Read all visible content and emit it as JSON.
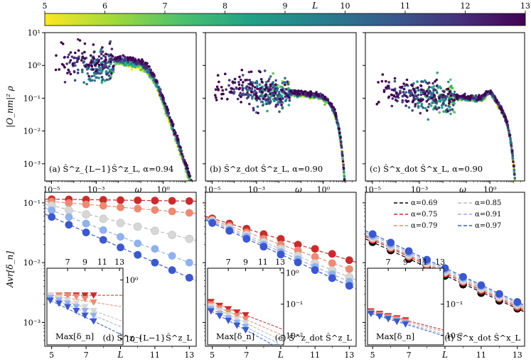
{
  "colorbar": {
    "label": "L",
    "ticks": [
      "5",
      "6",
      "7",
      "8",
      "9",
      "10",
      "11",
      "12",
      "13"
    ],
    "stops": [
      "#fde725",
      "#a0da39",
      "#4ac16d",
      "#1fa187",
      "#277f8e",
      "#365c8d",
      "#46327e",
      "#440154"
    ]
  },
  "chart_data": [
    {
      "id": "a",
      "type": "scatter",
      "label": "(a) Ŝ^z_{L−1}Ŝ^z_L, α=0.94",
      "xlabel": "ω",
      "ylabel": "|O_nm|² ρ",
      "xscale": "log",
      "yscale": "log",
      "xlim": [
        1e-05,
        30
      ],
      "ylim": [
        0.0003,
        10
      ],
      "xticks": [
        "10⁻⁵",
        "10⁻³",
        "10⁰"
      ],
      "yticks": [
        "10¹",
        "10⁰",
        "10⁻¹",
        "10⁻²",
        "10⁻³"
      ],
      "series_note": "one series per system size L = 5..13, colored by colorbar",
      "plateau_low": 1.5,
      "knee_omega": 0.3,
      "tail_slope": -2.2
    },
    {
      "id": "b",
      "type": "scatter",
      "label": "(b) Ŝ^z_dot Ŝ^z_L, α=0.90",
      "xlabel": "ω",
      "xscale": "log",
      "yscale": "log",
      "xlim": [
        1e-05,
        30
      ],
      "ylim": [
        0.0003,
        10
      ],
      "xticks": [
        "10⁻⁵",
        "10⁻³",
        "10⁰"
      ],
      "plateau_low": 0.12,
      "knee_omega": 3,
      "tail_slope": -4
    },
    {
      "id": "c",
      "type": "scatter",
      "label": "(c) Ŝ^x_dot Ŝ^x_L, α=0.90",
      "xlabel": "ω",
      "xscale": "log",
      "yscale": "log",
      "xlim": [
        1e-05,
        30
      ],
      "ylim": [
        0.0003,
        10
      ],
      "xticks": [
        "10⁻⁵",
        "10⁻³",
        "10⁰"
      ],
      "plateau_low": 0.09,
      "peak_omega": 1,
      "peak_value": 0.15,
      "knee_omega": 4,
      "tail_slope": -4
    },
    {
      "id": "d",
      "type": "line",
      "label": "(d) Ŝ^z_{L−1}Ŝ^z_L",
      "xlabel": "L",
      "ylabel": "Avr[δ_n]",
      "yscale": "log",
      "xlim": [
        4.6,
        13.4
      ],
      "ylim": [
        0.0004,
        0.15
      ],
      "xticks": [
        "5",
        "7",
        "L",
        "11",
        "13"
      ],
      "yticks": [
        "10⁻¹",
        "10⁻²",
        "10⁻³"
      ],
      "x": [
        5,
        6,
        7,
        8,
        9,
        10,
        11,
        12,
        13
      ],
      "series": [
        {
          "alpha": 0.75,
          "color": "#cc2b2b",
          "values": [
            0.115,
            0.114,
            0.113,
            0.112,
            0.111,
            0.11,
            0.109,
            0.108,
            0.107
          ]
        },
        {
          "alpha": 0.79,
          "color": "#ee8a72",
          "values": [
            0.105,
            0.099,
            0.094,
            0.089,
            0.084,
            0.08,
            0.076,
            0.072,
            0.068
          ]
        },
        {
          "alpha": 0.85,
          "color": "#d7d7d7",
          "values": [
            0.09,
            0.075,
            0.064,
            0.054,
            0.046,
            0.04,
            0.034,
            0.029,
            0.025
          ]
        },
        {
          "alpha": 0.91,
          "color": "#8fb1f0",
          "values": [
            0.075,
            0.058,
            0.045,
            0.035,
            0.027,
            0.021,
            0.017,
            0.013,
            0.01
          ]
        },
        {
          "alpha": 0.97,
          "color": "#3b58cf",
          "values": [
            0.058,
            0.043,
            0.032,
            0.024,
            0.018,
            0.0135,
            0.01,
            0.0075,
            0.0056
          ]
        }
      ],
      "inset": {
        "ylabel": "Max[δ_n]",
        "xticks": [
          "7",
          "9",
          "11",
          "13"
        ],
        "yticks": [
          "10⁰",
          "10⁻¹"
        ],
        "x": [
          5,
          6,
          7,
          8,
          9,
          10
        ],
        "series": [
          {
            "color": "#cc2b2b",
            "values": [
              0.55,
              0.55,
              0.55,
              0.55,
              0.55,
              0.55
            ]
          },
          {
            "color": "#ee8a72",
            "values": [
              0.55,
              0.55,
              0.54,
              0.52,
              0.48,
              0.42
            ]
          },
          {
            "color": "#d7d7d7",
            "values": [
              0.55,
              0.5,
              0.45,
              0.4,
              0.35,
              0.3
            ]
          },
          {
            "color": "#8fb1f0",
            "values": [
              0.5,
              0.45,
              0.4,
              0.35,
              0.3,
              0.25
            ]
          },
          {
            "color": "#3b58cf",
            "values": [
              0.45,
              0.4,
              0.35,
              0.3,
              0.25,
              0.2
            ]
          }
        ]
      }
    },
    {
      "id": "e",
      "type": "line",
      "label": "(e) Ŝ^z_dot Ŝ^z_L",
      "xlabel": "L",
      "yscale": "log",
      "xlim": [
        4.6,
        13.4
      ],
      "ylim": [
        0.0004,
        0.15
      ],
      "xticks": [
        "5",
        "7",
        "L",
        "11",
        "13"
      ],
      "x": [
        5,
        6,
        7,
        8,
        9,
        10,
        11,
        12,
        13
      ],
      "series": [
        {
          "alpha": 0.75,
          "color": "#cc2b2b",
          "values": [
            0.055,
            0.045,
            0.037,
            0.03,
            0.025,
            0.02,
            0.017,
            0.014,
            0.011
          ]
        },
        {
          "alpha": 0.79,
          "color": "#ee8a72",
          "values": [
            0.052,
            0.041,
            0.032,
            0.025,
            0.02,
            0.016,
            0.0125,
            0.0098,
            0.0078
          ]
        },
        {
          "alpha": 0.85,
          "color": "#d7d7d7",
          "values": [
            0.05,
            0.038,
            0.029,
            0.022,
            0.017,
            0.013,
            0.0097,
            0.0074,
            0.0057
          ]
        },
        {
          "alpha": 0.91,
          "color": "#8fb1f0",
          "values": [
            0.048,
            0.036,
            0.027,
            0.02,
            0.015,
            0.0113,
            0.0085,
            0.0064,
            0.0048
          ]
        },
        {
          "alpha": 0.97,
          "color": "#3b58cf",
          "values": [
            0.046,
            0.034,
            0.025,
            0.0185,
            0.0137,
            0.0101,
            0.0075,
            0.0055,
            0.0041
          ]
        }
      ],
      "inset": {
        "ylabel": "Max[δ_n]",
        "xticks": [
          "7",
          "9",
          "11",
          "13"
        ],
        "yticks": [
          "10⁰",
          "10⁻¹",
          "10⁻²"
        ],
        "x": [
          5,
          6,
          7,
          8,
          9
        ],
        "series": [
          {
            "color": "#cc2b2b",
            "values": [
              0.12,
              0.09,
              0.07,
              0.055,
              0.045
            ]
          },
          {
            "color": "#ee8a72",
            "values": [
              0.1,
              0.075,
              0.055,
              0.042,
              0.033
            ]
          },
          {
            "color": "#d7d7d7",
            "values": [
              0.085,
              0.062,
              0.045,
              0.033,
              0.025
            ]
          },
          {
            "color": "#8fb1f0",
            "values": [
              0.07,
              0.05,
              0.036,
              0.026,
              0.019
            ]
          },
          {
            "color": "#3b58cf",
            "values": [
              0.06,
              0.042,
              0.03,
              0.021,
              0.015
            ]
          }
        ]
      }
    },
    {
      "id": "f",
      "type": "line",
      "label": "(f) Ŝ^x_dot Ŝ^x_L",
      "xlabel": "L",
      "yscale": "log",
      "xlim": [
        4.6,
        13.4
      ],
      "ylim": [
        0.0004,
        0.15
      ],
      "xticks": [
        "5",
        "7",
        "L",
        "11",
        "13"
      ],
      "x": [
        5,
        6,
        7,
        8,
        9,
        10,
        11,
        12,
        13
      ],
      "legend": {
        "placement": "top-right",
        "entries": [
          "α=0.69",
          "α=0.75",
          "α=0.79",
          "α=0.85",
          "α=0.91",
          "α=0.97"
        ]
      },
      "series": [
        {
          "alpha": 0.69,
          "color": "#000000",
          "values": [
            0.022,
            0.016,
            0.0115,
            0.0083,
            0.006,
            0.0043,
            0.0031,
            0.0023,
            0.0017
          ]
        },
        {
          "alpha": 0.75,
          "color": "#cc2b2b",
          "values": [
            0.024,
            0.0172,
            0.0124,
            0.009,
            0.0065,
            0.0047,
            0.0034,
            0.0025,
            0.0018
          ]
        },
        {
          "alpha": 0.79,
          "color": "#ee8a72",
          "values": [
            0.025,
            0.018,
            0.013,
            0.0094,
            0.0068,
            0.0049,
            0.0036,
            0.0026,
            0.0019
          ]
        },
        {
          "alpha": 0.85,
          "color": "#d7d7d7",
          "values": [
            0.026,
            0.0188,
            0.0136,
            0.0098,
            0.0071,
            0.0051,
            0.0037,
            0.0027,
            0.002
          ]
        },
        {
          "alpha": 0.91,
          "color": "#8fb1f0",
          "values": [
            0.028,
            0.0202,
            0.0146,
            0.0105,
            0.0076,
            0.0055,
            0.004,
            0.0029,
            0.0021
          ]
        },
        {
          "alpha": 0.97,
          "color": "#3b58cf",
          "values": [
            0.03,
            0.0216,
            0.0156,
            0.0112,
            0.0081,
            0.0058,
            0.0042,
            0.003,
            0.0022
          ]
        }
      ],
      "inset": {
        "ylabel": "Max[δ_n]",
        "xticks": [
          "7",
          "9",
          "11",
          "13"
        ],
        "yticks": [
          "10⁻¹",
          "10⁻²"
        ],
        "x": [
          5,
          6,
          7,
          8,
          9
        ],
        "series": [
          {
            "color": "#cc2b2b",
            "values": [
              0.06,
              0.05,
              0.042,
              0.036,
              0.031
            ]
          },
          {
            "color": "#ee8a72",
            "values": [
              0.055,
              0.046,
              0.039,
              0.033,
              0.028
            ]
          },
          {
            "color": "#8fb1f0",
            "values": [
              0.052,
              0.043,
              0.036,
              0.03,
              0.025
            ]
          },
          {
            "color": "#3b58cf",
            "values": [
              0.05,
              0.041,
              0.034,
              0.028,
              0.023
            ]
          }
        ]
      }
    }
  ]
}
